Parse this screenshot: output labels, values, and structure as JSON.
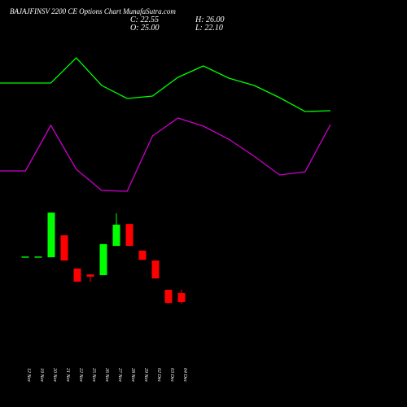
{
  "chart_data": [
    {
      "type": "candlestick",
      "title": "BAJAJFINSV 2200  CE Options  Chart MunafaSutra.com",
      "annotations": [
        "C: 22.55",
        "O: 25.00",
        "H: 26.00",
        "L: 22.10"
      ],
      "categories": [
        "12 Nov",
        "19 Nov",
        "20 Nov",
        "21 Nov",
        "22 Nov",
        "25 Nov",
        "26 Nov",
        "27 Nov",
        "28 Nov",
        "29 Nov",
        "02 Dec",
        "03 Dec",
        "04 Dec"
      ],
      "open": [
        35,
        35,
        34.8,
        40.8,
        31.7,
        30.1,
        29.9,
        37.9,
        43.9,
        36.6,
        33.9,
        25.9,
        25
      ],
      "high": [
        35,
        35,
        47.0,
        40.8,
        31.7,
        30.1,
        38.4,
        46.8,
        43.9,
        36.6,
        33.9,
        25.9,
        26
      ],
      "low": [
        35,
        35,
        34.8,
        33.9,
        28.1,
        28.1,
        29.9,
        37.9,
        37.9,
        34.1,
        29.0,
        22.3,
        22.1
      ],
      "close": [
        35,
        35,
        47.0,
        33.9,
        28.1,
        29.5,
        38.4,
        43.7,
        37.9,
        34.1,
        29.0,
        22.3,
        22.55
      ],
      "up_color": "#00ff00",
      "down_color": "#ff0000",
      "ylim": [
        20,
        50
      ]
    },
    {
      "type": "line",
      "categories": [
        null,
        null,
        null,
        null,
        null,
        null,
        null,
        null,
        null,
        null,
        null,
        null,
        null,
        null
      ],
      "series": [
        {
          "color": "#00ff00",
          "values": [
            198,
            198,
            198,
            229,
            195,
            179,
            182,
            205,
            219,
            204,
            195,
            180,
            163,
            164
          ]
        },
        {
          "color": "#cc00cc",
          "values": [
            90,
            90,
            146,
            92,
            66,
            65,
            133,
            155,
            145,
            129,
            108,
            85,
            89,
            147
          ]
        }
      ],
      "ylim": [
        0,
        300
      ]
    }
  ]
}
